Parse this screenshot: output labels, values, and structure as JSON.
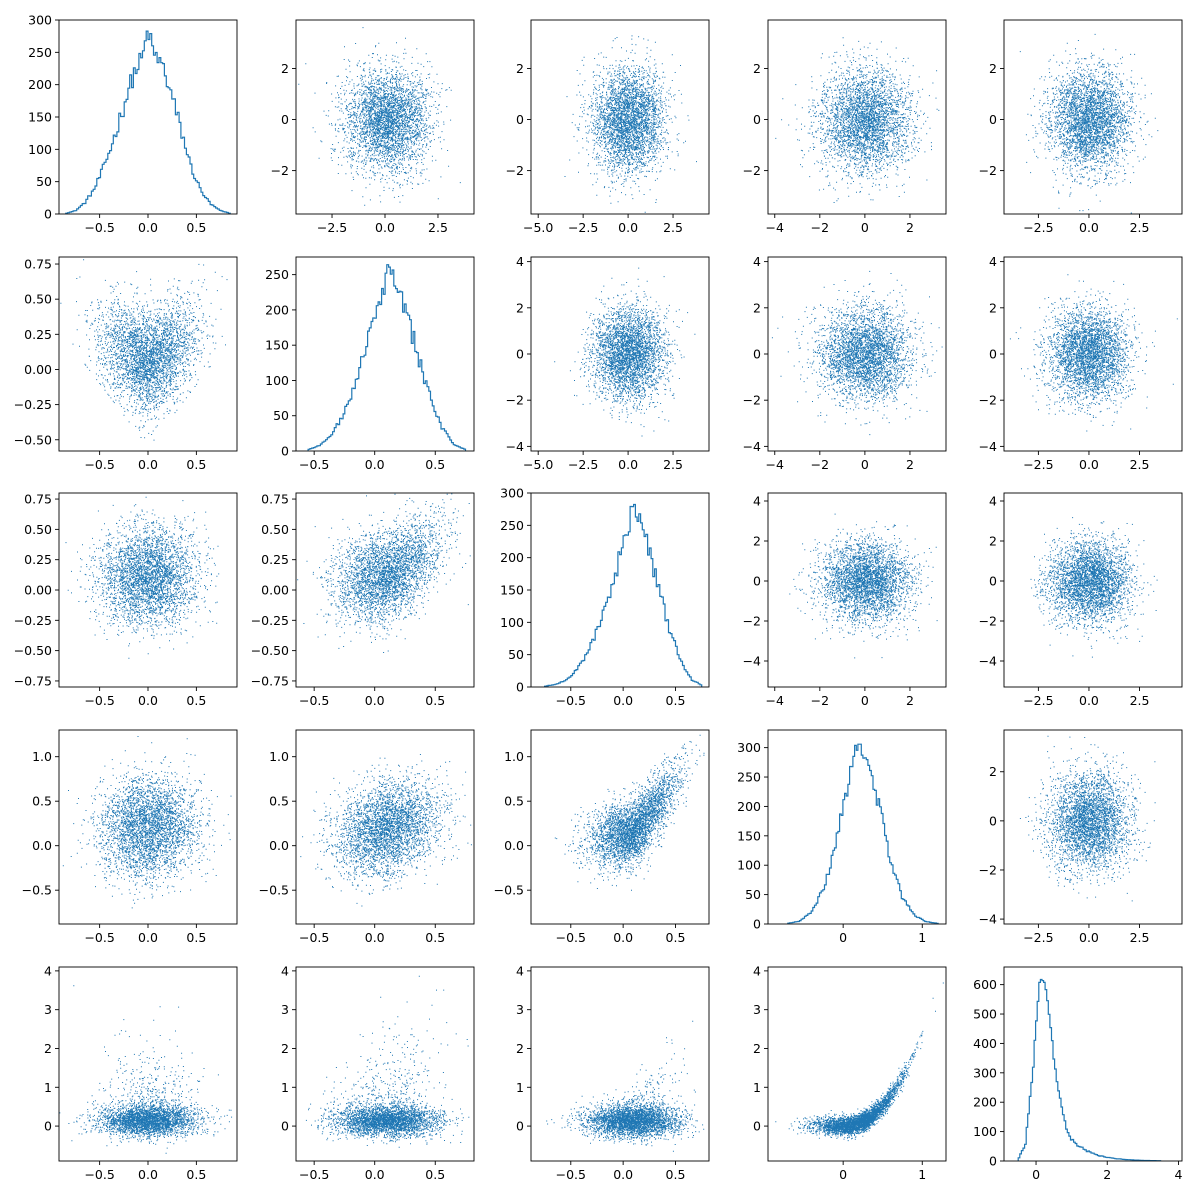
{
  "figure": {
    "rows": 5,
    "cols": 5,
    "series_color": "#1f77b4"
  },
  "chart_data": [
    {
      "type": "line",
      "kind": "histogram-step",
      "row": 0,
      "col": 0,
      "xlim": [
        -0.92,
        0.92
      ],
      "ylim": [
        0,
        300
      ],
      "xticks": [
        -0.5,
        0.0,
        0.5
      ],
      "yticks": [
        0,
        50,
        100,
        150,
        200,
        250,
        300
      ],
      "x": [
        -0.85,
        -0.75,
        -0.65,
        -0.55,
        -0.45,
        -0.35,
        -0.25,
        -0.15,
        -0.05,
        0.0,
        0.05,
        0.15,
        0.25,
        0.35,
        0.45,
        0.55,
        0.65,
        0.75,
        0.85
      ],
      "values": [
        1,
        5,
        18,
        40,
        75,
        118,
        168,
        215,
        245,
        287,
        250,
        230,
        180,
        125,
        70,
        35,
        15,
        5,
        1
      ]
    },
    {
      "type": "scatter",
      "row": 0,
      "col": 1,
      "xlim": [
        -4.2,
        4.2
      ],
      "ylim": [
        -3.7,
        3.9
      ],
      "xticks": [
        -2.5,
        0.0,
        2.5
      ],
      "yticks": [
        -2,
        0,
        2
      ],
      "x_mean": 0.1,
      "y_mean": 0.0,
      "x_sd": 1.0,
      "y_sd": 1.0,
      "n": 9000
    },
    {
      "type": "scatter",
      "row": 0,
      "col": 2,
      "xlim": [
        -5.4,
        4.5
      ],
      "ylim": [
        -3.7,
        3.9
      ],
      "xticks": [
        -5.0,
        -2.5,
        0.0,
        2.5
      ],
      "yticks": [
        -2,
        0,
        2
      ],
      "x_mean": 0.0,
      "y_mean": 0.0,
      "x_sd": 1.0,
      "y_sd": 1.0,
      "n": 9000
    },
    {
      "type": "scatter",
      "row": 0,
      "col": 3,
      "xlim": [
        -4.3,
        3.6
      ],
      "ylim": [
        -3.7,
        3.9
      ],
      "xticks": [
        -4,
        -2,
        0,
        2
      ],
      "yticks": [
        -2,
        0,
        2
      ],
      "x_mean": 0.0,
      "y_mean": 0.0,
      "x_sd": 1.0,
      "y_sd": 1.0,
      "n": 9000
    },
    {
      "type": "scatter",
      "row": 0,
      "col": 4,
      "xlim": [
        -4.2,
        4.6
      ],
      "ylim": [
        -3.7,
        3.9
      ],
      "xticks": [
        -2.5,
        0.0,
        2.5
      ],
      "yticks": [
        -2,
        0,
        2
      ],
      "x_mean": 0.0,
      "y_mean": 0.0,
      "x_sd": 1.0,
      "y_sd": 1.0,
      "n": 9000
    },
    {
      "type": "scatter",
      "row": 1,
      "col": 0,
      "xlim": [
        -0.92,
        0.92
      ],
      "ylim": [
        -0.58,
        0.8
      ],
      "xticks": [
        -0.5,
        0.0,
        0.5
      ],
      "yticks": [
        -0.5,
        -0.25,
        0.0,
        0.25,
        0.5,
        0.75
      ],
      "relation": "v",
      "n": 9000
    },
    {
      "type": "line",
      "kind": "histogram-step",
      "row": 1,
      "col": 1,
      "xlim": [
        -0.65,
        0.82
      ],
      "ylim": [
        0,
        275
      ],
      "xticks": [
        -0.5,
        0.0,
        0.5
      ],
      "yticks": [
        0,
        50,
        100,
        150,
        200,
        250
      ],
      "x": [
        -0.55,
        -0.45,
        -0.35,
        -0.25,
        -0.15,
        -0.05,
        0.05,
        0.12,
        0.15,
        0.25,
        0.35,
        0.45,
        0.55,
        0.65,
        0.75
      ],
      "values": [
        2,
        8,
        25,
        55,
        100,
        160,
        220,
        262,
        250,
        200,
        140,
        80,
        35,
        10,
        2
      ]
    },
    {
      "type": "scatter",
      "row": 1,
      "col": 2,
      "xlim": [
        -5.4,
        4.5
      ],
      "ylim": [
        -4.2,
        4.2
      ],
      "xticks": [
        -5.0,
        -2.5,
        0.0,
        2.5
      ],
      "yticks": [
        -4,
        -2,
        0,
        2,
        4
      ],
      "x_mean": 0.0,
      "y_mean": 0.0,
      "x_sd": 1.0,
      "y_sd": 1.0,
      "n": 9000
    },
    {
      "type": "scatter",
      "row": 1,
      "col": 3,
      "xlim": [
        -4.3,
        3.6
      ],
      "ylim": [
        -4.2,
        4.2
      ],
      "xticks": [
        -4,
        -2,
        0,
        2
      ],
      "yticks": [
        -4,
        -2,
        0,
        2,
        4
      ],
      "x_mean": 0.0,
      "y_mean": 0.0,
      "x_sd": 1.0,
      "y_sd": 1.0,
      "n": 9000
    },
    {
      "type": "scatter",
      "row": 1,
      "col": 4,
      "xlim": [
        -4.2,
        4.6
      ],
      "ylim": [
        -4.2,
        4.2
      ],
      "xticks": [
        -2.5,
        0.0,
        2.5
      ],
      "yticks": [
        -4,
        -2,
        0,
        2,
        4
      ],
      "x_mean": 0.0,
      "y_mean": 0.0,
      "x_sd": 1.0,
      "y_sd": 1.0,
      "n": 9000
    },
    {
      "type": "scatter",
      "row": 2,
      "col": 0,
      "xlim": [
        -0.92,
        0.92
      ],
      "ylim": [
        -0.8,
        0.8
      ],
      "xticks": [
        -0.5,
        0.0,
        0.5
      ],
      "yticks": [
        -0.75,
        -0.5,
        -0.25,
        0.0,
        0.25,
        0.5,
        0.75
      ],
      "x_mean": 0.0,
      "y_mean": 0.12,
      "x_sd": 0.25,
      "y_sd": 0.2,
      "n": 9000
    },
    {
      "type": "scatter",
      "row": 2,
      "col": 1,
      "xlim": [
        -0.65,
        0.82
      ],
      "ylim": [
        -0.8,
        0.8
      ],
      "xticks": [
        -0.5,
        0.0,
        0.5
      ],
      "yticks": [
        -0.75,
        -0.5,
        -0.25,
        0.0,
        0.25,
        0.5,
        0.75
      ],
      "relation": "v-skew",
      "n": 9000
    },
    {
      "type": "line",
      "kind": "histogram-step",
      "row": 2,
      "col": 2,
      "xlim": [
        -0.88,
        0.82
      ],
      "ylim": [
        0,
        300
      ],
      "xticks": [
        -0.5,
        0.0,
        0.5
      ],
      "yticks": [
        0,
        50,
        100,
        150,
        200,
        250,
        300
      ],
      "x": [
        -0.75,
        -0.65,
        -0.55,
        -0.45,
        -0.35,
        -0.25,
        -0.15,
        -0.05,
        0.05,
        0.1,
        0.15,
        0.25,
        0.35,
        0.45,
        0.55,
        0.65,
        0.75
      ],
      "values": [
        1,
        4,
        10,
        25,
        50,
        85,
        130,
        190,
        245,
        288,
        265,
        210,
        150,
        85,
        40,
        12,
        3
      ]
    },
    {
      "type": "scatter",
      "row": 2,
      "col": 3,
      "xlim": [
        -4.3,
        3.6
      ],
      "ylim": [
        -5.3,
        4.4
      ],
      "xticks": [
        -4,
        -2,
        0,
        2
      ],
      "yticks": [
        -4,
        -2,
        0,
        2,
        4
      ],
      "x_mean": 0.0,
      "y_mean": 0.0,
      "x_sd": 1.0,
      "y_sd": 1.0,
      "n": 9000
    },
    {
      "type": "scatter",
      "row": 2,
      "col": 4,
      "xlim": [
        -4.2,
        4.6
      ],
      "ylim": [
        -5.3,
        4.4
      ],
      "xticks": [
        -2.5,
        0.0,
        2.5
      ],
      "yticks": [
        -4,
        -2,
        0,
        2,
        4
      ],
      "x_mean": 0.0,
      "y_mean": 0.0,
      "x_sd": 1.0,
      "y_sd": 1.0,
      "n": 9000
    },
    {
      "type": "scatter",
      "row": 3,
      "col": 0,
      "xlim": [
        -0.92,
        0.92
      ],
      "ylim": [
        -0.88,
        1.3
      ],
      "xticks": [
        -0.5,
        0.0,
        0.5
      ],
      "yticks": [
        -0.5,
        0.0,
        0.5,
        1.0
      ],
      "x_mean": 0.0,
      "y_mean": 0.2,
      "x_sd": 0.25,
      "y_sd": 0.28,
      "n": 9000
    },
    {
      "type": "scatter",
      "row": 3,
      "col": 1,
      "xlim": [
        -0.65,
        0.82
      ],
      "ylim": [
        -0.88,
        1.3
      ],
      "xticks": [
        -0.5,
        0.0,
        0.5
      ],
      "yticks": [
        -0.5,
        0.0,
        0.5,
        1.0
      ],
      "relation": "corr",
      "n": 9000
    },
    {
      "type": "scatter",
      "row": 3,
      "col": 2,
      "xlim": [
        -0.88,
        0.82
      ],
      "ylim": [
        -0.88,
        1.3
      ],
      "xticks": [
        -0.5,
        0.0,
        0.5
      ],
      "yticks": [
        -0.5,
        0.0,
        0.5,
        1.0
      ],
      "relation": "v-strong",
      "n": 9000
    },
    {
      "type": "line",
      "kind": "histogram-step",
      "row": 3,
      "col": 3,
      "xlim": [
        -0.95,
        1.3
      ],
      "ylim": [
        0,
        330
      ],
      "xticks": [
        0,
        1
      ],
      "yticks": [
        0,
        50,
        100,
        150,
        200,
        250,
        300
      ],
      "x": [
        -0.7,
        -0.55,
        -0.4,
        -0.25,
        -0.1,
        0.05,
        0.15,
        0.2,
        0.3,
        0.45,
        0.6,
        0.75,
        0.9,
        1.05,
        1.2
      ],
      "values": [
        1,
        5,
        20,
        60,
        130,
        230,
        300,
        312,
        280,
        200,
        110,
        45,
        15,
        4,
        1
      ]
    },
    {
      "type": "scatter",
      "row": 3,
      "col": 4,
      "xlim": [
        -4.2,
        4.6
      ],
      "ylim": [
        -4.2,
        3.7
      ],
      "xticks": [
        -2.5,
        0.0,
        2.5
      ],
      "yticks": [
        -4,
        -2,
        0,
        2
      ],
      "x_mean": 0.0,
      "y_mean": 0.0,
      "x_sd": 1.0,
      "y_sd": 1.0,
      "n": 9000
    },
    {
      "type": "scatter",
      "row": 4,
      "col": 0,
      "xlim": [
        -0.92,
        0.92
      ],
      "ylim": [
        -0.9,
        4.1
      ],
      "xticks": [
        -0.5,
        0.0,
        0.5
      ],
      "yticks": [
        0,
        1,
        2,
        3,
        4
      ],
      "relation": "skew-y",
      "n": 9000
    },
    {
      "type": "scatter",
      "row": 4,
      "col": 1,
      "xlim": [
        -0.65,
        0.82
      ],
      "ylim": [
        -0.9,
        4.1
      ],
      "xticks": [
        -0.5,
        0.0,
        0.5
      ],
      "yticks": [
        0,
        1,
        2,
        3,
        4
      ],
      "relation": "skew-y-right",
      "n": 9000
    },
    {
      "type": "scatter",
      "row": 4,
      "col": 2,
      "xlim": [
        -0.88,
        0.82
      ],
      "ylim": [
        -0.9,
        4.1
      ],
      "xticks": [
        -0.5,
        0.0,
        0.5
      ],
      "yticks": [
        0,
        1,
        2,
        3,
        4
      ],
      "relation": "skew-y-strong",
      "n": 9000
    },
    {
      "type": "scatter",
      "row": 4,
      "col": 3,
      "xlim": [
        -0.95,
        1.3
      ],
      "ylim": [
        -0.9,
        4.1
      ],
      "xticks": [
        0,
        1
      ],
      "yticks": [
        0,
        1,
        2,
        3,
        4
      ],
      "relation": "parabola",
      "n": 9000
    },
    {
      "type": "line",
      "kind": "histogram-step",
      "row": 4,
      "col": 4,
      "xlim": [
        -0.9,
        4.1
      ],
      "ylim": [
        0,
        660
      ],
      "xticks": [
        0,
        2,
        4
      ],
      "yticks": [
        0,
        100,
        200,
        300,
        400,
        500,
        600
      ],
      "x": [
        -0.5,
        -0.3,
        -0.1,
        0.1,
        0.2,
        0.3,
        0.5,
        0.7,
        0.9,
        1.2,
        1.5,
        1.8,
        2.1,
        2.5,
        3.0,
        3.5
      ],
      "values": [
        5,
        60,
        300,
        600,
        630,
        580,
        350,
        180,
        90,
        50,
        30,
        18,
        10,
        5,
        2,
        1
      ]
    }
  ]
}
